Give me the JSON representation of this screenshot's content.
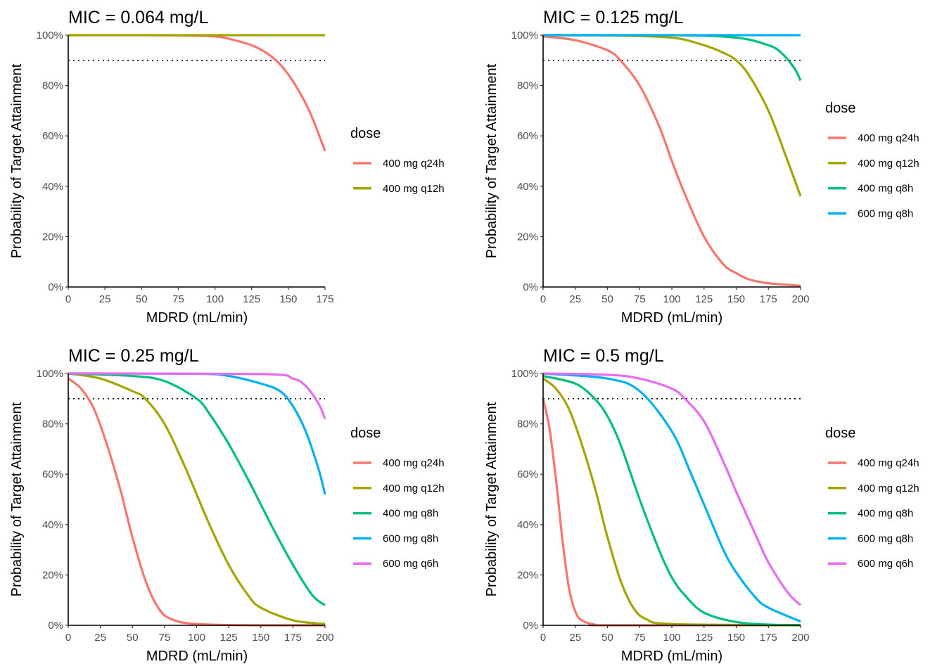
{
  "chart_data": [
    {
      "type": "line",
      "title": "MIC = 0.064 mg/L",
      "xlabel": "MDRD (mL/min)",
      "ylabel": "Probability of Target Attainment",
      "xlim": [
        0,
        175
      ],
      "ylim": [
        0,
        1
      ],
      "x_ticks": [
        0,
        25,
        50,
        75,
        100,
        125,
        150,
        175
      ],
      "x_tick_labels": [
        "0",
        "25",
        "50",
        "75",
        "100",
        "125",
        "150",
        "175"
      ],
      "y_ticks": [
        0,
        0.2,
        0.4,
        0.6,
        0.8,
        1
      ],
      "y_tick_labels": [
        "0%",
        "20%",
        "40%",
        "60%",
        "80%",
        "100%"
      ],
      "reference_line": {
        "y": 0.9,
        "style": "dotted"
      },
      "grid": false,
      "legend_title": "dose",
      "legend_placement": "right",
      "series": [
        {
          "name": "400 mg q24h",
          "color": "#F8766D",
          "x": [
            0,
            25,
            50,
            75,
            100,
            110,
            125,
            135,
            145,
            155,
            165,
            175
          ],
          "y": [
            1.0,
            1.0,
            1.0,
            0.999,
            0.995,
            0.985,
            0.96,
            0.93,
            0.88,
            0.8,
            0.69,
            0.54
          ]
        },
        {
          "name": "400 mg q12h",
          "color": "#A3A500",
          "x": [
            0,
            175
          ],
          "y": [
            1.0,
            1.0
          ]
        }
      ]
    },
    {
      "type": "line",
      "title": "MIC = 0.125 mg/L",
      "xlabel": "MDRD (mL/min)",
      "ylabel": "Probability of Target Attainment",
      "xlim": [
        0,
        200
      ],
      "ylim": [
        0,
        1
      ],
      "x_ticks": [
        0,
        25,
        50,
        75,
        100,
        125,
        150,
        175,
        200
      ],
      "x_tick_labels": [
        "0",
        "25",
        "50",
        "75",
        "100",
        "125",
        "150",
        "175",
        "200"
      ],
      "y_ticks": [
        0,
        0.2,
        0.4,
        0.6,
        0.8,
        1
      ],
      "y_tick_labels": [
        "0%",
        "20%",
        "40%",
        "60%",
        "80%",
        "100%"
      ],
      "reference_line": {
        "y": 0.9,
        "style": "dotted"
      },
      "grid": false,
      "legend_title": "dose",
      "legend_placement": "right",
      "series": [
        {
          "name": "400 mg q24h",
          "color": "#F8766D",
          "x": [
            0,
            25,
            50,
            60,
            75,
            90,
            100,
            110,
            125,
            140,
            150,
            160,
            175,
            200
          ],
          "y": [
            0.995,
            0.98,
            0.94,
            0.9,
            0.8,
            0.64,
            0.5,
            0.37,
            0.2,
            0.09,
            0.055,
            0.03,
            0.015,
            0.005
          ]
        },
        {
          "name": "400 mg q12h",
          "color": "#A3A500",
          "x": [
            0,
            50,
            100,
            125,
            140,
            150,
            160,
            175,
            190,
            200
          ],
          "y": [
            1.0,
            0.999,
            0.99,
            0.96,
            0.93,
            0.9,
            0.84,
            0.7,
            0.5,
            0.36
          ]
        },
        {
          "name": "400 mg q8h",
          "color": "#00BF7D",
          "x": [
            0,
            100,
            150,
            175,
            185,
            195,
            200
          ],
          "y": [
            1.0,
            1.0,
            0.99,
            0.96,
            0.93,
            0.87,
            0.82
          ]
        },
        {
          "name": "600 mg q8h",
          "color": "#00B0F6",
          "x": [
            0,
            200
          ],
          "y": [
            1.0,
            1.0
          ]
        }
      ]
    },
    {
      "type": "line",
      "title": "MIC = 0.25 mg/L",
      "xlabel": "MDRD (mL/min)",
      "ylabel": "Probability of Target Attainment",
      "xlim": [
        0,
        200
      ],
      "ylim": [
        0,
        1
      ],
      "x_ticks": [
        0,
        25,
        50,
        75,
        100,
        125,
        150,
        175,
        200
      ],
      "x_tick_labels": [
        "0",
        "25",
        "50",
        "75",
        "100",
        "125",
        "150",
        "175",
        "200"
      ],
      "y_ticks": [
        0,
        0.2,
        0.4,
        0.6,
        0.8,
        1
      ],
      "y_tick_labels": [
        "0%",
        "20%",
        "40%",
        "60%",
        "80%",
        "100%"
      ],
      "reference_line": {
        "y": 0.9,
        "style": "dotted"
      },
      "grid": false,
      "legend_title": "dose",
      "legend_placement": "right",
      "series": [
        {
          "name": "400 mg q24h",
          "color": "#F8766D",
          "x": [
            0,
            10,
            20,
            30,
            40,
            45,
            50,
            60,
            70,
            80,
            100,
            150,
            200
          ],
          "y": [
            0.98,
            0.94,
            0.86,
            0.72,
            0.55,
            0.45,
            0.35,
            0.18,
            0.07,
            0.025,
            0.005,
            0.0,
            0.0
          ]
        },
        {
          "name": "400 mg q12h",
          "color": "#A3A500",
          "x": [
            0,
            25,
            50,
            60,
            75,
            90,
            100,
            110,
            125,
            140,
            150,
            175,
            200
          ],
          "y": [
            1.0,
            0.98,
            0.93,
            0.9,
            0.8,
            0.64,
            0.52,
            0.4,
            0.24,
            0.12,
            0.07,
            0.02,
            0.005
          ]
        },
        {
          "name": "400 mg q8h",
          "color": "#00BF7D",
          "x": [
            0,
            50,
            75,
            100,
            110,
            125,
            140,
            150,
            160,
            175,
            190,
            200
          ],
          "y": [
            1.0,
            0.99,
            0.97,
            0.9,
            0.84,
            0.72,
            0.58,
            0.48,
            0.38,
            0.24,
            0.12,
            0.08
          ]
        },
        {
          "name": "600 mg q8h",
          "color": "#00B0F6",
          "x": [
            0,
            100,
            125,
            150,
            165,
            175,
            185,
            195,
            200
          ],
          "y": [
            1.0,
            0.999,
            0.99,
            0.96,
            0.93,
            0.87,
            0.77,
            0.62,
            0.52
          ]
        },
        {
          "name": "600 mg q6h",
          "color": "#E76BF3",
          "x": [
            0,
            150,
            175,
            185,
            195,
            200
          ],
          "y": [
            1.0,
            0.998,
            0.98,
            0.95,
            0.88,
            0.82
          ]
        }
      ]
    },
    {
      "type": "line",
      "title": "MIC = 0.5 mg/L",
      "xlabel": "MDRD (mL/min)",
      "ylabel": "Probability of Target Attainment",
      "xlim": [
        0,
        200
      ],
      "ylim": [
        0,
        1
      ],
      "x_ticks": [
        0,
        25,
        50,
        75,
        100,
        125,
        150,
        175,
        200
      ],
      "x_tick_labels": [
        "0",
        "25",
        "50",
        "75",
        "100",
        "125",
        "150",
        "175",
        "200"
      ],
      "y_ticks": [
        0,
        0.2,
        0.4,
        0.6,
        0.8,
        1
      ],
      "y_tick_labels": [
        "0%",
        "20%",
        "40%",
        "60%",
        "80%",
        "100%"
      ],
      "reference_line": {
        "y": 0.9,
        "style": "dotted"
      },
      "grid": false,
      "legend_title": "dose",
      "legend_placement": "right",
      "series": [
        {
          "name": "400 mg q24h",
          "color": "#F8766D",
          "x": [
            0,
            5,
            10,
            15,
            20,
            25,
            30,
            40,
            50,
            200
          ],
          "y": [
            0.9,
            0.78,
            0.58,
            0.34,
            0.15,
            0.055,
            0.02,
            0.003,
            0.0,
            0.0
          ]
        },
        {
          "name": "400 mg q12h",
          "color": "#A3A500",
          "x": [
            0,
            10,
            20,
            30,
            40,
            45,
            50,
            60,
            70,
            80,
            100,
            200
          ],
          "y": [
            0.98,
            0.94,
            0.86,
            0.72,
            0.55,
            0.45,
            0.35,
            0.18,
            0.07,
            0.025,
            0.005,
            0.0
          ]
        },
        {
          "name": "400 mg q8h",
          "color": "#00BF7D",
          "x": [
            0,
            25,
            40,
            50,
            60,
            75,
            90,
            100,
            110,
            125,
            150,
            175,
            200
          ],
          "y": [
            0.99,
            0.96,
            0.9,
            0.83,
            0.72,
            0.5,
            0.3,
            0.19,
            0.12,
            0.05,
            0.013,
            0.003,
            0.001
          ]
        },
        {
          "name": "600 mg q8h",
          "color": "#00B0F6",
          "x": [
            0,
            50,
            75,
            100,
            115,
            125,
            140,
            150,
            165,
            175,
            200
          ],
          "y": [
            1.0,
            0.98,
            0.93,
            0.77,
            0.6,
            0.48,
            0.3,
            0.21,
            0.11,
            0.07,
            0.015
          ]
        },
        {
          "name": "600 mg q6h",
          "color": "#E76BF3",
          "x": [
            0,
            50,
            75,
            100,
            110,
            125,
            140,
            150,
            165,
            175,
            190,
            200
          ],
          "y": [
            1.0,
            0.995,
            0.98,
            0.94,
            0.9,
            0.81,
            0.65,
            0.53,
            0.36,
            0.25,
            0.13,
            0.08
          ]
        }
      ]
    }
  ]
}
